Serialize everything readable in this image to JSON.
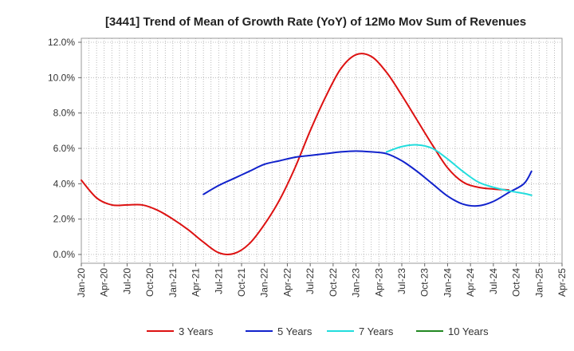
{
  "chart_data": {
    "type": "line",
    "title": "[3441]  Trend of Mean of Growth Rate (YoY) of 12Mo Mov Sum of Revenues",
    "xlabel": "",
    "ylabel": "",
    "ylim": [
      0,
      12
    ],
    "yticks": [
      "0.0%",
      "2.0%",
      "4.0%",
      "6.0%",
      "8.0%",
      "10.0%",
      "12.0%"
    ],
    "xticks": [
      "Jan-20",
      "Apr-20",
      "Jul-20",
      "Oct-20",
      "Jan-21",
      "Apr-21",
      "Jul-21",
      "Oct-21",
      "Jan-22",
      "Apr-22",
      "Jul-22",
      "Oct-22",
      "Jan-23",
      "Apr-23",
      "Jul-23",
      "Oct-23",
      "Jan-24",
      "Apr-24",
      "Jul-24",
      "Oct-24",
      "Jan-25",
      "Apr-25"
    ],
    "grid": true,
    "legend_position": "bottom",
    "series": [
      {
        "name": "3 Years",
        "color": "#dd1111",
        "points": [
          [
            0,
            4.2
          ],
          [
            2,
            3.2
          ],
          [
            4,
            2.8
          ],
          [
            6,
            2.8
          ],
          [
            8,
            2.8
          ],
          [
            10,
            2.5
          ],
          [
            12,
            2.0
          ],
          [
            14,
            1.4
          ],
          [
            16,
            0.7
          ],
          [
            18,
            0.1
          ],
          [
            20,
            0.05
          ],
          [
            22,
            0.6
          ],
          [
            24,
            1.7
          ],
          [
            26,
            3.1
          ],
          [
            28,
            4.9
          ],
          [
            30,
            7.0
          ],
          [
            32,
            8.9
          ],
          [
            34,
            10.5
          ],
          [
            36,
            11.3
          ],
          [
            38,
            11.2
          ],
          [
            40,
            10.3
          ],
          [
            42,
            9.0
          ],
          [
            44,
            7.6
          ],
          [
            46,
            6.2
          ],
          [
            48,
            4.9
          ],
          [
            50,
            4.1
          ],
          [
            52,
            3.8
          ],
          [
            54,
            3.7
          ],
          [
            56,
            3.65
          ]
        ]
      },
      {
        "name": "5 Years",
        "color": "#1122cc",
        "points": [
          [
            16,
            3.4
          ],
          [
            18,
            3.9
          ],
          [
            20,
            4.3
          ],
          [
            22,
            4.7
          ],
          [
            24,
            5.1
          ],
          [
            26,
            5.3
          ],
          [
            28,
            5.5
          ],
          [
            30,
            5.6
          ],
          [
            32,
            5.7
          ],
          [
            34,
            5.8
          ],
          [
            36,
            5.85
          ],
          [
            38,
            5.8
          ],
          [
            40,
            5.7
          ],
          [
            42,
            5.3
          ],
          [
            44,
            4.7
          ],
          [
            46,
            4.0
          ],
          [
            48,
            3.3
          ],
          [
            50,
            2.85
          ],
          [
            52,
            2.75
          ],
          [
            54,
            3.0
          ],
          [
            56,
            3.5
          ],
          [
            58,
            4.0
          ],
          [
            59,
            4.7
          ]
        ]
      },
      {
        "name": "7 Years",
        "color": "#22dddd",
        "points": [
          [
            40,
            5.8
          ],
          [
            42,
            6.1
          ],
          [
            44,
            6.2
          ],
          [
            46,
            6.0
          ],
          [
            48,
            5.4
          ],
          [
            50,
            4.7
          ],
          [
            52,
            4.1
          ],
          [
            54,
            3.8
          ],
          [
            56,
            3.6
          ],
          [
            58,
            3.45
          ],
          [
            59,
            3.35
          ]
        ]
      },
      {
        "name": "10 Years",
        "color": "#228822",
        "points": []
      }
    ]
  }
}
